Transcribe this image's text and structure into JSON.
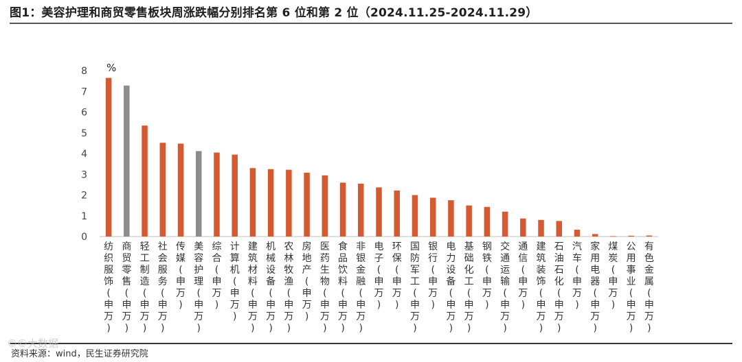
{
  "title": "图1：美容护理和商贸零售板块周涨跌幅分别排名第 6 位和第 2 位（2024.11.25-2024.11.29）",
  "source": "资料来源：wind，民生证券研究院",
  "watermark": "©©大数据",
  "colors": {
    "default": "#D65A31",
    "highlight": "#8C8C8C",
    "axis": "#BFBFBF"
  },
  "chart_data": {
    "type": "bar",
    "unit_label": "%",
    "ylim": [
      0,
      8
    ],
    "yticks": [
      "0",
      "1",
      "2",
      "3",
      "4",
      "5",
      "6",
      "7",
      "8"
    ],
    "grid": false,
    "categories": [
      "纺织服饰(申万)",
      "商贸零售(申万)",
      "轻工制造(申万)",
      "社会服务(申万)",
      "传媒(申万)",
      "美容护理(申万)",
      "综合(申万)",
      "计算机(申万)",
      "建筑材料(申万)",
      "机械设备(申万)",
      "农林牧渔(申万)",
      "房地产(申万)",
      "医药生物(申万)",
      "食品饮料(申万)",
      "非银金融(申万)",
      "电子(申万)",
      "环保(申万)",
      "国防军工(申万)",
      "银行(申万)",
      "电力设备(申万)",
      "基础化工(申万)",
      "钢铁(申万)",
      "交通运输(申万)",
      "通信(申万)",
      "建筑装饰(申万)",
      "石油石化(申万)",
      "汽车(申万)",
      "家用电器(申万)",
      "煤炭(申万)",
      "公用事业(申万)",
      "有色金属(申万)"
    ],
    "values": [
      7.65,
      7.28,
      5.35,
      4.52,
      4.48,
      4.12,
      4.05,
      3.95,
      3.3,
      3.25,
      3.22,
      3.08,
      2.95,
      2.6,
      2.55,
      2.37,
      2.22,
      2.0,
      1.87,
      1.75,
      1.5,
      1.43,
      1.2,
      0.87,
      0.8,
      0.75,
      0.33,
      0.12,
      0.02,
      0.04,
      0.05
    ],
    "highlighted": [
      "商贸零售(申万)",
      "美容护理(申万)"
    ]
  }
}
